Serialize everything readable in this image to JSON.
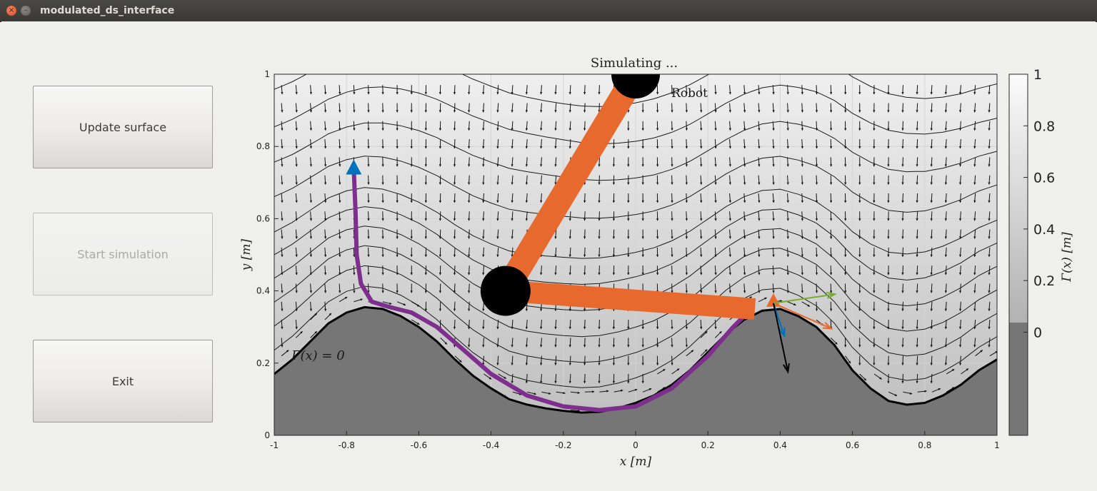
{
  "window": {
    "title": "modulated_ds_interface",
    "close_glyph": "×",
    "minimize_glyph": "–"
  },
  "controls": {
    "update_label": "Update surface",
    "start_label": "Start simulation",
    "exit_label": "Exit"
  },
  "plot": {
    "title": "Simulating ...",
    "xlabel": "x [m]",
    "ylabel": "y [m]",
    "robot_label": "Robot",
    "surface_label": "Γ(x) = 0",
    "colorbar_label": "Γ(x) [m]"
  },
  "chart_data": {
    "type": "contour",
    "xlim": [
      -1,
      1
    ],
    "ylim": [
      0,
      1
    ],
    "x_ticks": [
      "-1",
      "-0.8",
      "-0.6",
      "-0.4",
      "-0.2",
      "0",
      "0.2",
      "0.4",
      "0.6",
      "0.8",
      "1"
    ],
    "y_ticks": [
      "0",
      "0.2",
      "0.4",
      "0.6",
      "0.8",
      "1"
    ],
    "colorbar_ticks": [
      "1",
      "0.8",
      "0.6",
      "0.4",
      "0.2",
      "0"
    ],
    "colorbar_range": [
      -0.4,
      1
    ],
    "surface_curve": [
      [
        -1,
        0.17
      ],
      [
        -0.95,
        0.21
      ],
      [
        -0.9,
        0.26
      ],
      [
        -0.85,
        0.31
      ],
      [
        -0.8,
        0.34
      ],
      [
        -0.75,
        0.355
      ],
      [
        -0.7,
        0.35
      ],
      [
        -0.65,
        0.33
      ],
      [
        -0.6,
        0.3
      ],
      [
        -0.55,
        0.26
      ],
      [
        -0.5,
        0.21
      ],
      [
        -0.45,
        0.165
      ],
      [
        -0.4,
        0.13
      ],
      [
        -0.35,
        0.1
      ],
      [
        -0.3,
        0.085
      ],
      [
        -0.25,
        0.075
      ],
      [
        -0.2,
        0.068
      ],
      [
        -0.15,
        0.063
      ],
      [
        -0.1,
        0.065
      ],
      [
        -0.05,
        0.075
      ],
      [
        0,
        0.09
      ],
      [
        0.05,
        0.11
      ],
      [
        0.1,
        0.14
      ],
      [
        0.15,
        0.18
      ],
      [
        0.2,
        0.23
      ],
      [
        0.25,
        0.28
      ],
      [
        0.3,
        0.32
      ],
      [
        0.35,
        0.345
      ],
      [
        0.4,
        0.35
      ],
      [
        0.45,
        0.33
      ],
      [
        0.5,
        0.3
      ],
      [
        0.55,
        0.25
      ],
      [
        0.6,
        0.18
      ],
      [
        0.65,
        0.13
      ],
      [
        0.7,
        0.095
      ],
      [
        0.75,
        0.085
      ],
      [
        0.8,
        0.09
      ],
      [
        0.85,
        0.11
      ],
      [
        0.9,
        0.14
      ],
      [
        0.95,
        0.18
      ],
      [
        1,
        0.21
      ]
    ],
    "contour_offsets": [
      0.05,
      0.1,
      0.15,
      0.2,
      0.25,
      0.3,
      0.38,
      0.46,
      0.54,
      0.62,
      0.7,
      0.78,
      0.86,
      0.94
    ],
    "trajectory": [
      [
        -0.78,
        0.74
      ],
      [
        -0.775,
        0.62
      ],
      [
        -0.772,
        0.5
      ],
      [
        -0.76,
        0.42
      ],
      [
        -0.73,
        0.37
      ],
      [
        -0.68,
        0.355
      ],
      [
        -0.62,
        0.34
      ],
      [
        -0.55,
        0.3
      ],
      [
        -0.48,
        0.24
      ],
      [
        -0.4,
        0.17
      ],
      [
        -0.3,
        0.11
      ],
      [
        -0.2,
        0.08
      ],
      [
        -0.1,
        0.07
      ],
      [
        0,
        0.08
      ],
      [
        0.1,
        0.13
      ],
      [
        0.2,
        0.22
      ],
      [
        0.27,
        0.3
      ],
      [
        0.3,
        0.33
      ]
    ],
    "robot": {
      "base": [
        0,
        1
      ],
      "elbow": [
        -0.36,
        0.4
      ],
      "end_effector": [
        0.33,
        0.35
      ]
    },
    "end_effector_arrows": [
      {
        "color": "orange",
        "dx": 0.16,
        "dy": -0.07
      },
      {
        "color": "green",
        "dx": 0.17,
        "dy": 0.025
      },
      {
        "color": "blue",
        "dx": 0.03,
        "dy": -0.09
      },
      {
        "color": "black",
        "dx": 0.04,
        "dy": -0.19
      }
    ],
    "colors": {
      "robot_link": "#e8692d",
      "joint": "#000000",
      "trajectory": "#7e2f8e",
      "start_marker": "#0072bd",
      "obstacle": "#767676",
      "field_high": "#efefef",
      "field_low": "#c2c2c2"
    }
  }
}
